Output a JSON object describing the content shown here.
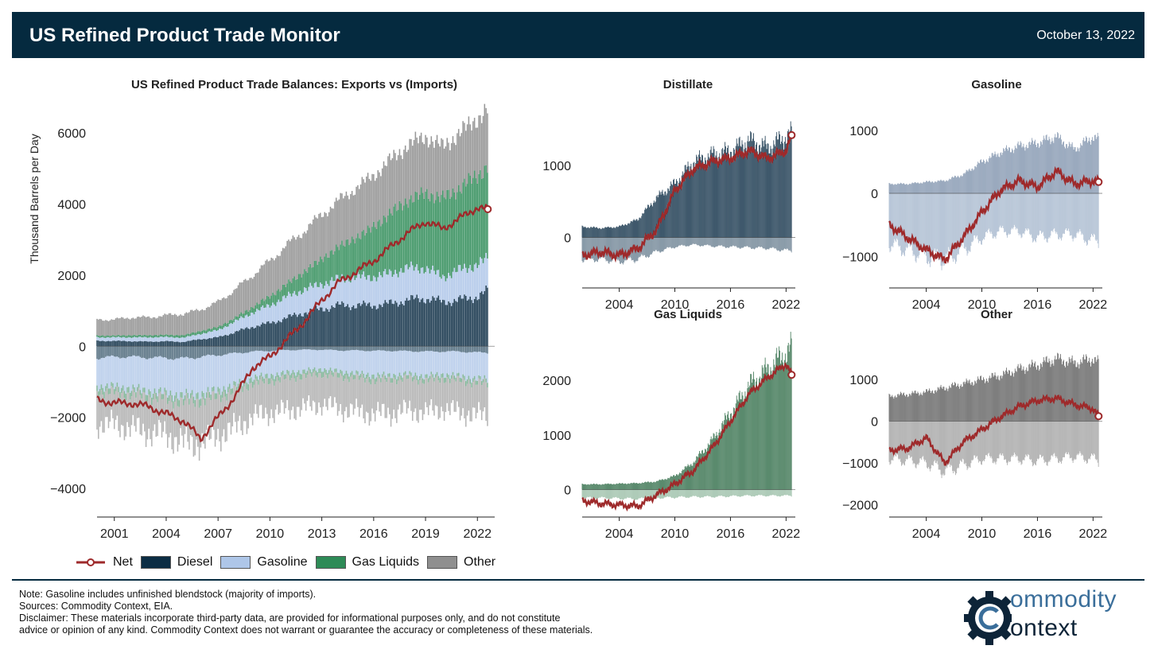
{
  "header": {
    "title": "US Refined Product Trade Monitor",
    "date": "October 13, 2022"
  },
  "colors": {
    "header_bg": "#052a3f",
    "net": "#9e2a2b",
    "diesel": "#0c2d44",
    "gasoline": "#aec6e8",
    "gas_liquids": "#2e8b57",
    "other": "#8f8f8f"
  },
  "main_chart": {
    "title": "US Refined Product Trade Balances: Exports vs (Imports)",
    "ylabel": "Thousand Barrels per Day",
    "x_ticks": [
      "2001",
      "2004",
      "2007",
      "2010",
      "2013",
      "2016",
      "2019",
      "2022"
    ],
    "y_ticks": [
      "6000",
      "4000",
      "2000",
      "0",
      "−2000",
      "−4000"
    ]
  },
  "legend": [
    "Net",
    "Diesel",
    "Gasoline",
    "Gas Liquids",
    "Other"
  ],
  "small_charts": {
    "distillate": {
      "title": "Distillate",
      "x_ticks": [
        "2004",
        "2010",
        "2016",
        "2022"
      ],
      "y_ticks": [
        "1000",
        "0"
      ]
    },
    "gasoline": {
      "title": "Gasoline",
      "x_ticks": [
        "2004",
        "2010",
        "2016",
        "2022"
      ],
      "y_ticks": [
        "1000",
        "0",
        "−1000"
      ]
    },
    "gas_liquids": {
      "title": "Gas Liquids",
      "x_ticks": [
        "2004",
        "2010",
        "2016",
        "2022"
      ],
      "y_ticks": [
        "2000",
        "1000",
        "0"
      ]
    },
    "other": {
      "title": "Other",
      "x_ticks": [
        "2004",
        "2010",
        "2016",
        "2022"
      ],
      "y_ticks": [
        "1000",
        "0",
        "−1000",
        "−2000"
      ]
    }
  },
  "chart_data": [
    {
      "type": "bar",
      "title": "US Refined Product Trade Balances: Exports vs (Imports)",
      "ylabel": "Thousand Barrels per Day",
      "ylim": [
        -4800,
        6600
      ],
      "xlim": [
        2000.0,
        2023.0
      ],
      "x": [
        2000.0,
        2001.0,
        2002.0,
        2003.0,
        2004.0,
        2005.0,
        2006.0,
        2007.0,
        2008.0,
        2009.0,
        2010.0,
        2011.0,
        2012.0,
        2013.0,
        2014.0,
        2015.0,
        2016.0,
        2017.0,
        2018.0,
        2019.0,
        2020.0,
        2021.0,
        2022.0,
        2022.6
      ],
      "series": [
        {
          "name": "Diesel",
          "exports": [
            150,
            150,
            140,
            130,
            140,
            120,
            200,
            250,
            400,
            550,
            650,
            800,
            950,
            1050,
            1150,
            1150,
            1150,
            1200,
            1300,
            1350,
            1250,
            1300,
            1400,
            1550
          ],
          "imports": [
            -330,
            -300,
            -300,
            -320,
            -330,
            -350,
            -300,
            -250,
            -200,
            -150,
            -130,
            -110,
            -100,
            -100,
            -120,
            -120,
            -130,
            -130,
            -140,
            -150,
            -150,
            -150,
            -180,
            -180
          ]
        },
        {
          "name": "Gasoline",
          "exports": [
            100,
            100,
            110,
            120,
            120,
            120,
            150,
            200,
            300,
            400,
            500,
            600,
            650,
            700,
            750,
            800,
            800,
            850,
            900,
            850,
            700,
            850,
            900,
            900
          ],
          "imports": [
            -800,
            -850,
            -900,
            -950,
            -1000,
            -1050,
            -1050,
            -1000,
            -900,
            -750,
            -700,
            -650,
            -600,
            -550,
            -600,
            -650,
            -700,
            -700,
            -650,
            -700,
            -650,
            -700,
            -750,
            -750
          ]
        },
        {
          "name": "Gas Liquids",
          "exports": [
            50,
            50,
            60,
            60,
            60,
            70,
            80,
            90,
            100,
            150,
            250,
            350,
            500,
            700,
            900,
            1100,
            1400,
            1700,
            1900,
            2100,
            2200,
            2300,
            2500,
            2600
          ],
          "imports": [
            -150,
            -150,
            -150,
            -150,
            -160,
            -170,
            -170,
            -160,
            -150,
            -140,
            -140,
            -140,
            -130,
            -130,
            -130,
            -120,
            -120,
            -110,
            -110,
            -110,
            -110,
            -110,
            -110,
            -110
          ]
        },
        {
          "name": "Other",
          "exports": [
            450,
            450,
            500,
            500,
            550,
            600,
            600,
            700,
            800,
            900,
            1000,
            1100,
            1150,
            1250,
            1300,
            1400,
            1450,
            1500,
            1550,
            1600,
            1450,
            1550,
            1600,
            1600
          ],
          "imports": [
            -900,
            -900,
            -950,
            -1000,
            -1000,
            -1150,
            -1200,
            -1100,
            -1050,
            -950,
            -900,
            -900,
            -900,
            -850,
            -900,
            -950,
            -950,
            -950,
            -900,
            -900,
            -850,
            -900,
            -900,
            -900
          ]
        },
        {
          "name": "Net",
          "values": [
            -1500,
            -1600,
            -1600,
            -1700,
            -1900,
            -2100,
            -2600,
            -2000,
            -1400,
            -600,
            -300,
            200,
            700,
            1300,
            1800,
            2100,
            2400,
            2800,
            3200,
            3500,
            3300,
            3600,
            3900,
            3850
          ]
        }
      ]
    },
    {
      "type": "bar",
      "title": "Distillate",
      "ylim": [
        -700,
        1750
      ],
      "xlim": [
        2000.0,
        2023.0
      ],
      "x": [
        2000.0,
        2002.0,
        2004.0,
        2006.0,
        2008.0,
        2010.0,
        2012.0,
        2014.0,
        2016.0,
        2018.0,
        2020.0,
        2022.0,
        2022.6
      ],
      "series": [
        {
          "name": "Exports",
          "values": [
            150,
            130,
            150,
            250,
            550,
            750,
            1050,
            1150,
            1200,
            1350,
            1250,
            1400,
            1450
          ]
        },
        {
          "name": "Imports",
          "values": [
            -300,
            -300,
            -330,
            -300,
            -200,
            -130,
            -100,
            -120,
            -130,
            -140,
            -150,
            -180,
            -180
          ]
        },
        {
          "name": "Net",
          "values": [
            -250,
            -200,
            -250,
            -150,
            100,
            650,
            950,
            1050,
            1100,
            1200,
            1100,
            1200,
            1420
          ]
        }
      ]
    },
    {
      "type": "bar",
      "title": "Gasoline",
      "ylim": [
        -1500,
        1300
      ],
      "xlim": [
        2000.0,
        2023.0
      ],
      "x": [
        2000.0,
        2002.0,
        2004.0,
        2006.0,
        2008.0,
        2010.0,
        2012.0,
        2014.0,
        2016.0,
        2018.0,
        2020.0,
        2022.0,
        2022.6
      ],
      "series": [
        {
          "name": "Exports",
          "values": [
            150,
            150,
            180,
            200,
            300,
            500,
            650,
            750,
            800,
            900,
            700,
            900,
            850
          ]
        },
        {
          "name": "Imports",
          "values": [
            -800,
            -900,
            -1000,
            -1050,
            -900,
            -700,
            -600,
            -600,
            -700,
            -650,
            -650,
            -750,
            -750
          ]
        },
        {
          "name": "Net",
          "values": [
            -500,
            -700,
            -900,
            -1050,
            -700,
            -300,
            50,
            200,
            100,
            350,
            150,
            200,
            180
          ]
        }
      ]
    },
    {
      "type": "bar",
      "title": "Gas Liquids",
      "ylim": [
        -500,
        2700
      ],
      "xlim": [
        2000.0,
        2023.0
      ],
      "x": [
        2000.0,
        2002.0,
        2004.0,
        2006.0,
        2008.0,
        2010.0,
        2012.0,
        2014.0,
        2016.0,
        2018.0,
        2020.0,
        2022.0,
        2022.6
      ],
      "series": [
        {
          "name": "Exports",
          "values": [
            100,
            100,
            110,
            120,
            150,
            250,
            500,
            900,
            1400,
            1900,
            2200,
            2500,
            2600
          ]
        },
        {
          "name": "Imports",
          "values": [
            -150,
            -150,
            -160,
            -170,
            -150,
            -140,
            -130,
            -130,
            -120,
            -110,
            -110,
            -110,
            -110
          ]
        },
        {
          "name": "Net",
          "values": [
            -200,
            -250,
            -280,
            -300,
            -100,
            100,
            350,
            750,
            1250,
            1750,
            2050,
            2300,
            2100
          ]
        }
      ]
    },
    {
      "type": "bar",
      "title": "Other",
      "ylim": [
        -2300,
        1900
      ],
      "xlim": [
        2000.0,
        2023.0
      ],
      "x": [
        2000.0,
        2002.0,
        2004.0,
        2006.0,
        2008.0,
        2010.0,
        2012.0,
        2014.0,
        2016.0,
        2018.0,
        2020.0,
        2022.0,
        2022.6
      ],
      "series": [
        {
          "name": "Exports",
          "values": [
            600,
            650,
            700,
            800,
            900,
            1000,
            1100,
            1250,
            1350,
            1500,
            1400,
            1500,
            1400
          ]
        },
        {
          "name": "Imports",
          "values": [
            -900,
            -950,
            -1000,
            -1200,
            -1050,
            -900,
            -900,
            -900,
            -950,
            -900,
            -850,
            -900,
            -950
          ]
        },
        {
          "name": "Net",
          "values": [
            -700,
            -650,
            -400,
            -1000,
            -500,
            -200,
            100,
            350,
            500,
            550,
            400,
            300,
            120
          ]
        }
      ]
    }
  ],
  "footer": {
    "note": "Note: Gasoline includes unfinished blendstock (majority of imports).",
    "sources": "Sources: Commodity Context, EIA.",
    "disclaimer_1": "Disclaimer: These materials incorporate third-party data, are provided for informational purposes only, and do not constitute",
    "disclaimer_2": "advice or opinion of any kind. Commodity Context does not warrant or guarantee the accuracy or completeness of these materials."
  },
  "logo": {
    "line1": "ommodity",
    "line2": "ontext"
  }
}
